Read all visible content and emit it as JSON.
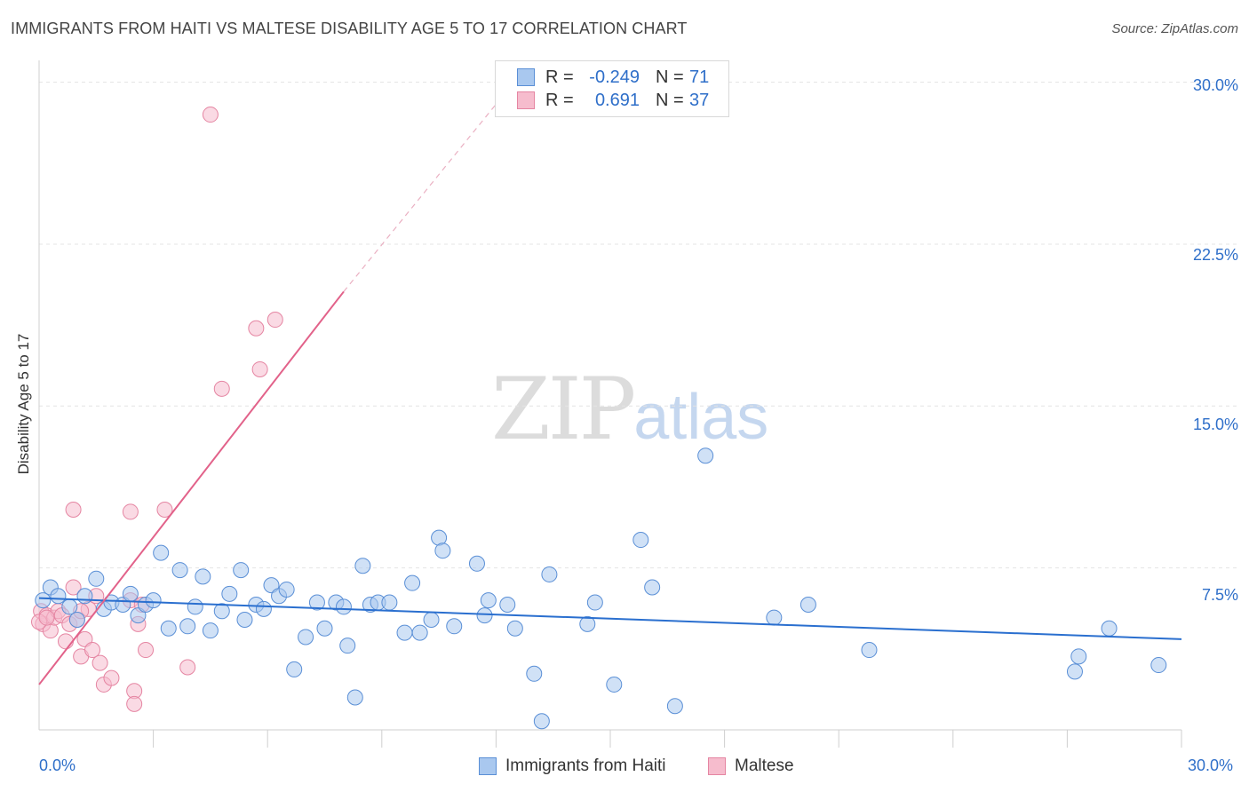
{
  "header": {
    "title": "IMMIGRANTS FROM HAITI VS MALTESE DISABILITY AGE 5 TO 17 CORRELATION CHART",
    "source": "Source: ZipAtlas.com"
  },
  "legend": {
    "rows": [
      {
        "r_label": "R =",
        "r_value": "-0.249",
        "n_label": "N =",
        "n_value": "71"
      },
      {
        "r_label": "R =",
        "r_value": "0.691",
        "n_label": "N =",
        "n_value": "37"
      }
    ]
  },
  "watermark": {
    "zip": "ZIP",
    "atlas": "atlas"
  },
  "colors": {
    "haiti_fill": "#a9c8ef",
    "haiti_stroke": "#5a8fd6",
    "haiti_line": "#2a6fcf",
    "maltese_fill": "#f6bccd",
    "maltese_stroke": "#e585a2",
    "maltese_line": "#e2628a",
    "tick_text": "#2f6fc9",
    "grid": "#e4e4e4"
  },
  "chart_data": {
    "type": "scatter",
    "title": "IMMIGRANTS FROM HAITI VS MALTESE DISABILITY AGE 5 TO 17 CORRELATION CHART",
    "xlabel": "",
    "ylabel": "Disability Age 5 to 17",
    "xlim": [
      0,
      30
    ],
    "ylim": [
      0,
      30.6
    ],
    "x_tick_labels": [
      "0.0%",
      "30.0%"
    ],
    "y_ticks": [
      7.5,
      15.0,
      22.5,
      30.0
    ],
    "y_tick_labels": [
      "7.5%",
      "15.0%",
      "22.5%",
      "30.0%"
    ],
    "grid": true,
    "legend_position": "top-center",
    "series": [
      {
        "name": "Immigrants from Haiti",
        "r": -0.249,
        "n": 71,
        "trend": {
          "x": [
            0,
            30
          ],
          "y": [
            6.1,
            4.2
          ]
        },
        "points": [
          [
            0.1,
            6.0
          ],
          [
            0.3,
            6.6
          ],
          [
            0.5,
            6.2
          ],
          [
            0.8,
            5.7
          ],
          [
            1.0,
            5.1
          ],
          [
            1.2,
            6.2
          ],
          [
            1.5,
            7.0
          ],
          [
            1.7,
            5.6
          ],
          [
            1.9,
            5.9
          ],
          [
            2.2,
            5.8
          ],
          [
            2.4,
            6.3
          ],
          [
            2.6,
            5.3
          ],
          [
            2.8,
            5.8
          ],
          [
            3.0,
            6.0
          ],
          [
            3.2,
            8.2
          ],
          [
            3.4,
            4.7
          ],
          [
            3.7,
            7.4
          ],
          [
            3.9,
            4.8
          ],
          [
            4.1,
            5.7
          ],
          [
            4.3,
            7.1
          ],
          [
            4.5,
            4.6
          ],
          [
            4.8,
            5.5
          ],
          [
            5.0,
            6.3
          ],
          [
            5.3,
            7.4
          ],
          [
            5.4,
            5.1
          ],
          [
            5.7,
            5.8
          ],
          [
            5.9,
            5.6
          ],
          [
            6.1,
            6.7
          ],
          [
            6.3,
            6.2
          ],
          [
            6.5,
            6.5
          ],
          [
            6.7,
            2.8
          ],
          [
            7.0,
            4.3
          ],
          [
            7.3,
            5.9
          ],
          [
            7.5,
            4.7
          ],
          [
            7.8,
            5.9
          ],
          [
            8.0,
            5.7
          ],
          [
            8.1,
            3.9
          ],
          [
            8.3,
            1.5
          ],
          [
            8.5,
            7.6
          ],
          [
            8.7,
            5.8
          ],
          [
            8.9,
            5.9
          ],
          [
            9.2,
            5.9
          ],
          [
            9.6,
            4.5
          ],
          [
            9.8,
            6.8
          ],
          [
            10.0,
            4.5
          ],
          [
            10.3,
            5.1
          ],
          [
            10.5,
            8.9
          ],
          [
            10.6,
            8.3
          ],
          [
            10.9,
            4.8
          ],
          [
            11.5,
            7.7
          ],
          [
            11.7,
            5.3
          ],
          [
            11.8,
            6.0
          ],
          [
            12.3,
            5.8
          ],
          [
            12.5,
            4.7
          ],
          [
            13.0,
            2.6
          ],
          [
            13.2,
            0.4
          ],
          [
            13.4,
            7.2
          ],
          [
            14.4,
            4.9
          ],
          [
            14.6,
            5.9
          ],
          [
            15.1,
            2.1
          ],
          [
            15.8,
            8.8
          ],
          [
            16.1,
            6.6
          ],
          [
            16.7,
            1.1
          ],
          [
            17.5,
            12.7
          ],
          [
            19.3,
            5.2
          ],
          [
            20.2,
            5.8
          ],
          [
            21.8,
            3.7
          ],
          [
            27.2,
            2.7
          ],
          [
            27.3,
            3.4
          ],
          [
            28.1,
            4.7
          ],
          [
            29.4,
            3.0
          ]
        ]
      },
      {
        "name": "Maltese",
        "r": 0.691,
        "n": 37,
        "trend": {
          "x": [
            0,
            8
          ],
          "y": [
            2.1,
            20.3
          ]
        },
        "trend_dashed": {
          "x": [
            8,
            12.7
          ],
          "y": [
            20.3,
            30.5
          ]
        },
        "points": [
          [
            0.05,
            5.5
          ],
          [
            0.1,
            4.9
          ],
          [
            0.2,
            5.3
          ],
          [
            0.3,
            4.6
          ],
          [
            0.4,
            5.2
          ],
          [
            0.5,
            5.5
          ],
          [
            0.6,
            5.3
          ],
          [
            0.7,
            4.1
          ],
          [
            0.8,
            4.9
          ],
          [
            0.9,
            10.2
          ],
          [
            0.9,
            6.6
          ],
          [
            1.0,
            5.1
          ],
          [
            1.1,
            3.4
          ],
          [
            1.2,
            4.2
          ],
          [
            1.3,
            5.6
          ],
          [
            1.4,
            3.7
          ],
          [
            1.5,
            6.2
          ],
          [
            1.6,
            3.1
          ],
          [
            1.7,
            2.1
          ],
          [
            1.9,
            2.4
          ],
          [
            2.4,
            10.1
          ],
          [
            2.4,
            6.0
          ],
          [
            2.5,
            1.8
          ],
          [
            2.5,
            1.2
          ],
          [
            2.6,
            4.9
          ],
          [
            2.7,
            5.8
          ],
          [
            2.8,
            3.7
          ],
          [
            3.3,
            10.2
          ],
          [
            3.9,
            2.9
          ],
          [
            4.5,
            28.5
          ],
          [
            4.8,
            15.8
          ],
          [
            5.7,
            18.6
          ],
          [
            5.8,
            16.7
          ],
          [
            6.2,
            19.0
          ],
          [
            0.0,
            5.0
          ],
          [
            0.2,
            5.2
          ],
          [
            1.1,
            5.5
          ]
        ]
      }
    ]
  },
  "bottom_legend": [
    {
      "label": "Immigrants from Haiti"
    },
    {
      "label": "Maltese"
    }
  ]
}
